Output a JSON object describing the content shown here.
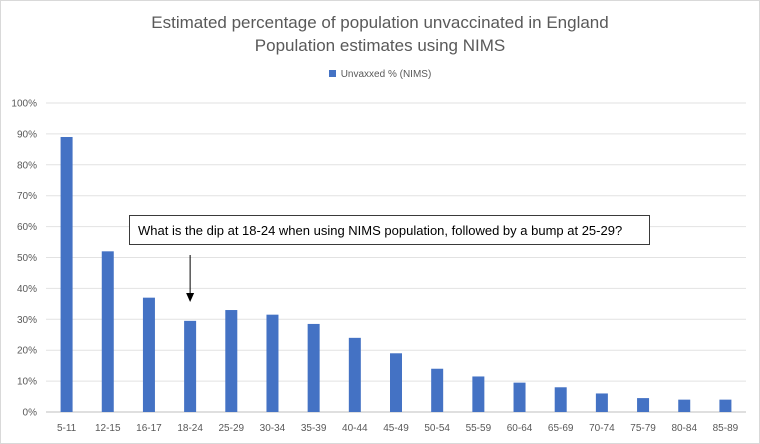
{
  "chart_data": {
    "type": "bar",
    "title": "Estimated percentage of population unvaccinated in England",
    "subtitle": "Population estimates using NIMS",
    "legend": {
      "position": "top-center",
      "entries": [
        "Unvaxxed % (NIMS)"
      ]
    },
    "categories": [
      "5-11",
      "12-15",
      "16-17",
      "18-24",
      "25-29",
      "30-34",
      "35-39",
      "40-44",
      "45-49",
      "50-54",
      "55-59",
      "60-64",
      "65-69",
      "70-74",
      "75-79",
      "80-84",
      "85-89"
    ],
    "series": [
      {
        "name": "Unvaxxed % (NIMS)",
        "color": "#4472c4",
        "values": [
          89,
          52,
          37,
          29.5,
          33,
          31.5,
          28.5,
          24,
          19,
          14,
          11.5,
          9.5,
          8,
          6,
          4.5,
          4,
          4
        ]
      }
    ],
    "y_ticks": [
      "0%",
      "10%",
      "20%",
      "30%",
      "40%",
      "50%",
      "60%",
      "70%",
      "80%",
      "90%",
      "100%"
    ],
    "ylim": [
      0,
      100
    ],
    "grid": true,
    "annotation": {
      "text": "What is the dip at 18-24  when using NIMS population, followed by a bump at 25-29?",
      "points_to": "18-24"
    }
  }
}
